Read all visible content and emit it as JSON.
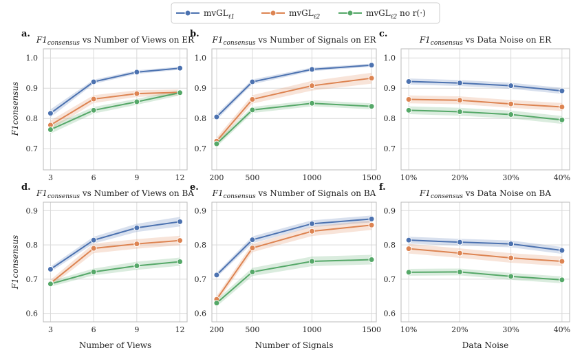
{
  "legend": [
    {
      "label": "mvGL",
      "sub": "ℓ1",
      "suffix": "",
      "color": "#4c72b0"
    },
    {
      "label": "mvGL",
      "sub": "ℓ2",
      "suffix": "",
      "color": "#dd8452"
    },
    {
      "label": "mvGL",
      "sub": "ℓ2",
      "suffix": " no r(·)",
      "color": "#55a868"
    }
  ],
  "y_axis_label_top": "F1consensus",
  "y_axis_label_bottom": "F1consensus",
  "chart_data": [
    {
      "type": "line",
      "letter": "a.",
      "title": "F1consensus vs Number of Views on ER",
      "x": [
        3,
        6,
        9,
        12
      ],
      "x_tick_labels": [
        "3",
        "6",
        "9",
        "12"
      ],
      "xlim": [
        2.5,
        12.5
      ],
      "ylim": [
        0.63,
        1.03
      ],
      "y_ticks": [
        0.7,
        0.8,
        0.9,
        1.0
      ],
      "y_tick_labels": [
        "0.7",
        "0.8",
        "0.9",
        "1.0"
      ],
      "xlabel": "",
      "ylabel": "F1consensus",
      "series": [
        {
          "name": "mvGL_l1",
          "values": [
            0.817,
            0.921,
            0.953,
            0.966
          ],
          "band": [
            0.013,
            0.007,
            0.006,
            0.005
          ]
        },
        {
          "name": "mvGL_l2",
          "values": [
            0.778,
            0.864,
            0.882,
            0.886
          ],
          "band": [
            0.015,
            0.013,
            0.011,
            0.01
          ]
        },
        {
          "name": "mvGL_l2 no r",
          "values": [
            0.763,
            0.827,
            0.855,
            0.885
          ],
          "band": [
            0.013,
            0.011,
            0.01,
            0.009
          ]
        }
      ]
    },
    {
      "type": "line",
      "letter": "b.",
      "title": "F1consensus vs Number of Signals on ER",
      "x": [
        200,
        500,
        1000,
        1500
      ],
      "x_tick_labels": [
        "200",
        "500",
        "1000",
        "1500"
      ],
      "xlim": [
        160,
        1540
      ],
      "ylim": [
        0.63,
        1.03
      ],
      "y_ticks": [
        0.7,
        0.8,
        0.9,
        1.0
      ],
      "y_tick_labels": [
        "0.7",
        "0.8",
        "0.9",
        "1.0"
      ],
      "xlabel": "",
      "ylabel": "",
      "series": [
        {
          "name": "mvGL_l1",
          "values": [
            0.805,
            0.921,
            0.962,
            0.976
          ],
          "band": [
            0.01,
            0.008,
            0.006,
            0.005
          ]
        },
        {
          "name": "mvGL_l2",
          "values": [
            0.725,
            0.863,
            0.908,
            0.933
          ],
          "band": [
            0.012,
            0.014,
            0.016,
            0.018
          ]
        },
        {
          "name": "mvGL_l2 no r",
          "values": [
            0.716,
            0.828,
            0.85,
            0.84
          ],
          "band": [
            0.01,
            0.01,
            0.01,
            0.01
          ]
        }
      ]
    },
    {
      "type": "line",
      "letter": "c.",
      "title": "F1consensus vs Data Noise on ER",
      "x": [
        10,
        20,
        30,
        40
      ],
      "x_tick_labels": [
        "10%",
        "20%",
        "30%",
        "40%"
      ],
      "xlim": [
        8.5,
        41.5
      ],
      "ylim": [
        0.63,
        1.03
      ],
      "y_ticks": [
        0.7,
        0.8,
        0.9,
        1.0
      ],
      "y_tick_labels": [
        "0.7",
        "0.8",
        "0.9",
        "1.0"
      ],
      "xlabel": "",
      "ylabel": "",
      "series": [
        {
          "name": "mvGL_l1",
          "values": [
            0.922,
            0.917,
            0.908,
            0.891
          ],
          "band": [
            0.01,
            0.01,
            0.01,
            0.01
          ]
        },
        {
          "name": "mvGL_l2",
          "values": [
            0.863,
            0.86,
            0.848,
            0.838
          ],
          "band": [
            0.013,
            0.013,
            0.013,
            0.013
          ]
        },
        {
          "name": "mvGL_l2 no r",
          "values": [
            0.827,
            0.822,
            0.813,
            0.795
          ],
          "band": [
            0.013,
            0.013,
            0.013,
            0.013
          ]
        }
      ]
    },
    {
      "type": "line",
      "letter": "d.",
      "title": "F1consensus vs Number of Views on BA",
      "x": [
        3,
        6,
        9,
        12
      ],
      "x_tick_labels": [
        "3",
        "6",
        "9",
        "12"
      ],
      "xlim": [
        2.5,
        12.5
      ],
      "ylim": [
        0.575,
        0.925
      ],
      "y_ticks": [
        0.6,
        0.7,
        0.8,
        0.9
      ],
      "y_tick_labels": [
        "0.6",
        "0.7",
        "0.8",
        "0.9"
      ],
      "xlabel": "Number of Views",
      "ylabel": "F1consensus",
      "series": [
        {
          "name": "mvGL_l1",
          "values": [
            0.729,
            0.814,
            0.85,
            0.868
          ],
          "band": [
            0.008,
            0.01,
            0.012,
            0.014
          ]
        },
        {
          "name": "mvGL_l2",
          "values": [
            0.688,
            0.79,
            0.803,
            0.813
          ],
          "band": [
            0.01,
            0.014,
            0.014,
            0.014
          ]
        },
        {
          "name": "mvGL_l2 no r",
          "values": [
            0.686,
            0.721,
            0.739,
            0.751
          ],
          "band": [
            0.008,
            0.01,
            0.012,
            0.012
          ]
        }
      ]
    },
    {
      "type": "line",
      "letter": "e.",
      "title": "F1consensus vs Number of Signals on BA",
      "x": [
        200,
        500,
        1000,
        1500
      ],
      "x_tick_labels": [
        "200",
        "500",
        "1000",
        "1500"
      ],
      "xlim": [
        160,
        1540
      ],
      "ylim": [
        0.575,
        0.925
      ],
      "y_ticks": [
        0.6,
        0.7,
        0.8,
        0.9
      ],
      "y_tick_labels": [
        "0.6",
        "0.7",
        "0.8",
        "0.9"
      ],
      "xlabel": "Number of Signals",
      "ylabel": "",
      "series": [
        {
          "name": "mvGL_l1",
          "values": [
            0.712,
            0.815,
            0.862,
            0.876
          ],
          "band": [
            0.007,
            0.01,
            0.01,
            0.01
          ]
        },
        {
          "name": "mvGL_l2",
          "values": [
            0.641,
            0.791,
            0.84,
            0.858
          ],
          "band": [
            0.01,
            0.012,
            0.014,
            0.014
          ]
        },
        {
          "name": "mvGL_l2 no r",
          "values": [
            0.63,
            0.721,
            0.752,
            0.757
          ],
          "band": [
            0.01,
            0.012,
            0.014,
            0.014
          ]
        }
      ]
    },
    {
      "type": "line",
      "letter": "f.",
      "title": "F1consensus vs Data Noise on BA",
      "x": [
        10,
        20,
        30,
        40
      ],
      "x_tick_labels": [
        "10%",
        "20%",
        "30%",
        "40%"
      ],
      "xlim": [
        8.5,
        41.5
      ],
      "ylim": [
        0.575,
        0.925
      ],
      "y_ticks": [
        0.6,
        0.7,
        0.8,
        0.9
      ],
      "y_tick_labels": [
        "0.6",
        "0.7",
        "0.8",
        "0.9"
      ],
      "xlabel": "Data Noise",
      "ylabel": "",
      "series": [
        {
          "name": "mvGL_l1",
          "values": [
            0.814,
            0.808,
            0.803,
            0.784
          ],
          "band": [
            0.01,
            0.01,
            0.01,
            0.01
          ]
        },
        {
          "name": "mvGL_l2",
          "values": [
            0.789,
            0.776,
            0.762,
            0.752
          ],
          "band": [
            0.014,
            0.014,
            0.014,
            0.014
          ]
        },
        {
          "name": "mvGL_l2 no r",
          "values": [
            0.72,
            0.721,
            0.708,
            0.698
          ],
          "band": [
            0.01,
            0.01,
            0.01,
            0.01
          ]
        }
      ]
    }
  ]
}
